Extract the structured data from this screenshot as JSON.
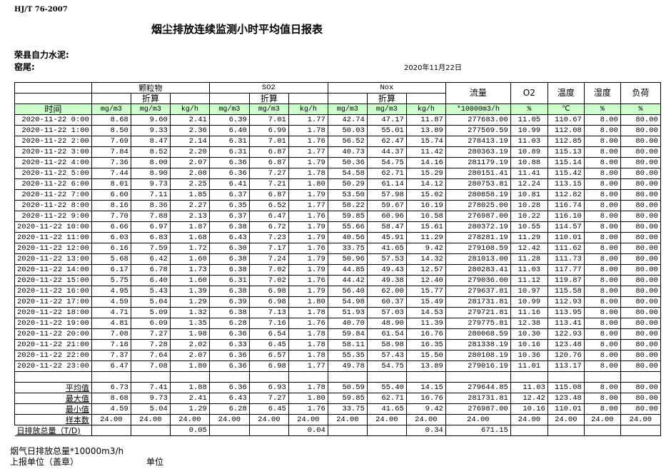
{
  "header": {
    "standard": "HJ/T  76-2007",
    "title": "烟尘排放连续监测小时平均值日报表",
    "company": "荣县自力水泥:",
    "location": "窑尾:",
    "date": "2020年11月22日"
  },
  "table": {
    "group_headers": {
      "particulate": "颗粒物",
      "so2": "SO2",
      "nox": "Nox",
      "flow": "流量",
      "o2": "O2",
      "temp": "温度",
      "humidity": "湿度",
      "load": "负荷"
    },
    "converted_label": "折算",
    "time_label": "时间",
    "units": [
      "mg/m3",
      "mg/m3",
      "kg/h",
      "mg/m3",
      "mg/m3",
      "kg/h",
      "mg/m3",
      "mg/m3",
      "kg/h",
      "*10000m3/h",
      "%",
      "℃",
      "%",
      "%"
    ],
    "rows": [
      [
        "2020-11-22 0:00",
        "8.68",
        "9.60",
        "2.41",
        "6.39",
        "7.01",
        "1.77",
        "42.74",
        "47.17",
        "11.87",
        "277683.00",
        "11.05",
        "110.67",
        "8.00",
        "80.00"
      ],
      [
        "2020-11-22 1:00",
        "8.50",
        "9.33",
        "2.36",
        "6.40",
        "6.99",
        "1.78",
        "50.03",
        "55.01",
        "13.89",
        "277569.59",
        "10.99",
        "112.08",
        "8.00",
        "80.00"
      ],
      [
        "2020-11-22 2:00",
        "7.69",
        "8.47",
        "2.14",
        "6.31",
        "7.01",
        "1.76",
        "56.52",
        "62.47",
        "15.74",
        "278413.19",
        "11.03",
        "112.85",
        "8.00",
        "80.00"
      ],
      [
        "2020-11-22 3:00",
        "7.84",
        "8.52",
        "2.20",
        "6.31",
        "6.87",
        "1.77",
        "40.73",
        "44.37",
        "11.42",
        "280363.19",
        "10.89",
        "115.13",
        "8.00",
        "80.00"
      ],
      [
        "2020-11-22 4:00",
        "7.36",
        "8.00",
        "2.07",
        "6.36",
        "6.87",
        "1.79",
        "50.36",
        "54.75",
        "14.16",
        "281179.19",
        "10.88",
        "115.14",
        "8.00",
        "80.00"
      ],
      [
        "2020-11-22 5:00",
        "7.44",
        "8.90",
        "2.08",
        "6.36",
        "7.27",
        "1.78",
        "54.58",
        "62.71",
        "15.29",
        "280151.41",
        "11.41",
        "115.42",
        "8.00",
        "80.00"
      ],
      [
        "2020-11-22 6:00",
        "8.01",
        "9.73",
        "2.25",
        "6.41",
        "7.21",
        "1.80",
        "50.29",
        "61.14",
        "14.12",
        "280753.81",
        "12.24",
        "113.15",
        "8.00",
        "80.00"
      ],
      [
        "2020-11-22 7:00",
        "6.60",
        "7.11",
        "1.85",
        "6.37",
        "6.87",
        "1.79",
        "53.50",
        "57.98",
        "15.02",
        "280858.19",
        "10.81",
        "112.82",
        "8.00",
        "80.00"
      ],
      [
        "2020-11-22 8:00",
        "8.16",
        "8.36",
        "2.27",
        "6.35",
        "6.52",
        "1.77",
        "58.22",
        "59.67",
        "16.19",
        "278025.00",
        "10.28",
        "116.74",
        "8.00",
        "80.00"
      ],
      [
        "2020-11-22 9:00",
        "7.70",
        "7.88",
        "2.13",
        "6.37",
        "6.47",
        "1.76",
        "59.85",
        "60.96",
        "16.58",
        "276987.00",
        "10.22",
        "116.10",
        "8.00",
        "80.00"
      ],
      [
        "2020-11-22 10:00",
        "6.66",
        "6.97",
        "1.87",
        "6.38",
        "6.72",
        "1.79",
        "55.66",
        "58.47",
        "15.61",
        "280372.19",
        "10.55",
        "114.57",
        "8.00",
        "80.00"
      ],
      [
        "2020-11-22 11:00",
        "6.03",
        "6.83",
        "1.68",
        "6.43",
        "7.23",
        "1.79",
        "40.56",
        "45.91",
        "11.29",
        "278281.19",
        "11.29",
        "110.01",
        "8.00",
        "80.00"
      ],
      [
        "2020-11-22 12:00",
        "6.16",
        "7.59",
        "1.72",
        "6.30",
        "7.17",
        "1.76",
        "33.75",
        "41.65",
        "9.42",
        "279108.59",
        "12.42",
        "111.62",
        "8.00",
        "80.00"
      ],
      [
        "2020-11-22 13:00",
        "5.68",
        "6.42",
        "1.60",
        "6.38",
        "7.24",
        "1.79",
        "50.96",
        "57.53",
        "14.32",
        "281013.00",
        "11.28",
        "111.73",
        "8.00",
        "80.00"
      ],
      [
        "2020-11-22 14:00",
        "6.17",
        "6.78",
        "1.73",
        "6.38",
        "7.02",
        "1.79",
        "44.85",
        "49.43",
        "12.57",
        "280283.41",
        "11.03",
        "117.77",
        "8.00",
        "80.00"
      ],
      [
        "2020-11-22 15:00",
        "5.75",
        "6.40",
        "1.60",
        "6.31",
        "7.02",
        "1.76",
        "44.42",
        "49.38",
        "12.40",
        "279036.00",
        "11.12",
        "119.87",
        "8.00",
        "80.00"
      ],
      [
        "2020-11-22 16:00",
        "4.95",
        "5.43",
        "1.39",
        "6.38",
        "6.98",
        "1.79",
        "56.40",
        "62.00",
        "15.77",
        "279637.81",
        "10.97",
        "115.58",
        "8.00",
        "80.00"
      ],
      [
        "2020-11-22 17:00",
        "4.59",
        "5.04",
        "1.29",
        "6.39",
        "6.98",
        "1.80",
        "54.98",
        "60.37",
        "15.49",
        "281731.81",
        "10.99",
        "112.93",
        "8.00",
        "80.00"
      ],
      [
        "2020-11-22 18:00",
        "4.71",
        "5.09",
        "1.32",
        "6.38",
        "7.13",
        "1.78",
        "51.93",
        "57.03",
        "14.53",
        "279721.81",
        "11.16",
        "113.95",
        "8.00",
        "80.00"
      ],
      [
        "2020-11-22 19:00",
        "4.81",
        "6.09",
        "1.35",
        "6.28",
        "7.16",
        "1.76",
        "40.70",
        "48.90",
        "11.39",
        "279775.81",
        "12.38",
        "113.41",
        "8.00",
        "80.00"
      ],
      [
        "2020-11-22 20:00",
        "7.08",
        "7.27",
        "1.98",
        "6.36",
        "6.54",
        "1.78",
        "59.84",
        "61.54",
        "16.76",
        "280068.59",
        "10.30",
        "122.93",
        "8.00",
        "80.00"
      ],
      [
        "2020-11-22 21:00",
        "7.18",
        "7.28",
        "2.02",
        "6.33",
        "6.45",
        "1.78",
        "58.11",
        "58.98",
        "16.35",
        "281338.19",
        "10.16",
        "123.48",
        "8.00",
        "80.00"
      ],
      [
        "2020-11-22 22:00",
        "7.37",
        "7.64",
        "2.07",
        "6.36",
        "6.57",
        "1.78",
        "55.35",
        "57.43",
        "15.50",
        "280108.19",
        "10.36",
        "120.76",
        "8.00",
        "80.00"
      ],
      [
        "2020-11-22 23:00",
        "6.47",
        "7.08",
        "1.80",
        "6.36",
        "6.98",
        "1.77",
        "49.78",
        "54.75",
        "13.89",
        "279016.19",
        "11.01",
        "113.17",
        "8.00",
        "80.00"
      ]
    ],
    "summary": [
      [
        "平均值",
        "6.73",
        "7.41",
        "1.88",
        "6.36",
        "6.93",
        "1.78",
        "50.59",
        "55.40",
        "14.15",
        "279644.85",
        "11.03",
        "115.08",
        "8.00",
        "80.00"
      ],
      [
        "最大值",
        "8.68",
        "9.73",
        "2.41",
        "6.43",
        "7.27",
        "1.80",
        "59.85",
        "62.71",
        "16.76",
        "281731.81",
        "12.42",
        "123.48",
        "8.00",
        "80.00"
      ],
      [
        "最小值",
        "4.59",
        "5.04",
        "1.29",
        "6.28",
        "6.45",
        "1.76",
        "33.75",
        "41.65",
        "9.42",
        "276987.00",
        "10.16",
        "110.01",
        "8.00",
        "80.00"
      ],
      [
        "样本数",
        "24.00",
        "24.00",
        "24.00",
        "24.00",
        "24.00",
        "24.00",
        "24.00",
        "24.00",
        "24.00",
        "24.00",
        "24.00",
        "24.00",
        "24.00",
        "24.00"
      ]
    ],
    "daily_total": [
      "日排放总量（T/D)",
      "",
      "",
      "0.05",
      "",
      "",
      "0.04",
      "",
      "",
      "0.34",
      "671.15",
      "",
      "",
      "",
      ""
    ],
    "header_color": "#ccffcc"
  },
  "footer": {
    "flue_gas_total": "烟气日排放总量*10000m3/h",
    "reporting_unit": "上报单位（盖章）",
    "unit": "单位"
  }
}
